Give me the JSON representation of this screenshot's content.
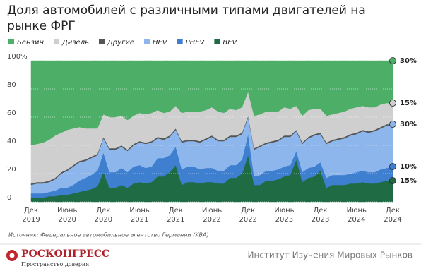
{
  "chart_data": {
    "type": "stacked-area",
    "title": "Доля автомобилей с различными типами двигателей на рынке ФРГ",
    "source": "Источник: Федеральное автомобильное агентство Германии (KBA)",
    "categories": [
      [
        "Дек",
        "2019"
      ],
      null,
      null,
      null,
      null,
      null,
      [
        "Июнь",
        "2020"
      ],
      null,
      null,
      null,
      null,
      null,
      [
        "Дек",
        "2020"
      ],
      null,
      null,
      null,
      null,
      null,
      [
        "Июнь",
        "2021"
      ],
      null,
      null,
      null,
      null,
      null,
      [
        "Дек",
        "2021"
      ],
      null,
      null,
      null,
      null,
      null,
      [
        "Июнь",
        "2022"
      ],
      null,
      null,
      null,
      null,
      null,
      [
        "Дек",
        "2022"
      ],
      null,
      null,
      null,
      null,
      null,
      [
        "Июнь",
        "2023"
      ],
      null,
      null,
      null,
      null,
      null,
      [
        "Дек",
        "2023"
      ],
      null,
      null,
      null,
      null,
      null,
      [
        "Июнь",
        "2024"
      ],
      null,
      null,
      null,
      null,
      null,
      [
        "Дек",
        "2024"
      ]
    ],
    "ylim": [
      0,
      100
    ],
    "yticks": [
      0,
      20,
      40,
      60,
      80,
      {
        "value": 100,
        "label": "100%"
      }
    ],
    "grid": true,
    "series": [
      {
        "name": "Бензин",
        "color": "#4daf67",
        "values": [
          60,
          59,
          58,
          56,
          53,
          51,
          49,
          48,
          47,
          48,
          48,
          48,
          38,
          40,
          40,
          39,
          42,
          39,
          37,
          38,
          37,
          35,
          37,
          36,
          32,
          37,
          36,
          36,
          36,
          35,
          33,
          36,
          37,
          34,
          35,
          33,
          22,
          39,
          38,
          36,
          36,
          36,
          33,
          34,
          32,
          39,
          35,
          34,
          34,
          39,
          38,
          37,
          36,
          34,
          33,
          32,
          33,
          33,
          31,
          30,
          30
        ],
        "value_labels": [
          null,
          null,
          null,
          null,
          null,
          null,
          null,
          null,
          null,
          null,
          null,
          null,
          null,
          null,
          null,
          null,
          null,
          null,
          null,
          null,
          null,
          null,
          null,
          null,
          null,
          null,
          null,
          null,
          null,
          null,
          null,
          null,
          null,
          null,
          null,
          null,
          null,
          null,
          null,
          null,
          null,
          null,
          null,
          null,
          null,
          null,
          null,
          null,
          null,
          null,
          null,
          null,
          null,
          null,
          null,
          null,
          null,
          null,
          null,
          null,
          "30%"
        ]
      },
      {
        "name": "Дизель",
        "color": "#cfcfcf",
        "values": [
          27,
          27,
          28,
          29,
          30,
          28,
          28,
          26,
          24,
          22,
          20,
          18,
          16,
          22,
          22,
          21,
          21,
          20,
          20,
          20,
          20,
          19,
          18,
          17,
          16,
          20,
          20,
          20,
          21,
          20,
          20,
          20,
          19,
          19,
          18,
          18,
          17,
          23,
          22,
          22,
          21,
          20,
          20,
          19,
          17,
          19,
          19,
          18,
          17,
          19,
          18,
          18,
          18,
          18,
          18,
          17,
          17,
          16,
          16,
          15,
          15
        ],
        "value_labels": [
          null,
          null,
          null,
          null,
          null,
          null,
          null,
          null,
          null,
          null,
          null,
          null,
          null,
          null,
          null,
          null,
          null,
          null,
          null,
          null,
          null,
          null,
          null,
          null,
          null,
          null,
          null,
          null,
          null,
          null,
          null,
          null,
          null,
          null,
          null,
          null,
          null,
          null,
          null,
          null,
          null,
          null,
          null,
          null,
          null,
          null,
          null,
          null,
          null,
          null,
          null,
          null,
          null,
          null,
          null,
          null,
          null,
          null,
          null,
          null,
          "15%"
        ]
      },
      {
        "name": "Другие",
        "color": "#555555",
        "values": [
          1,
          1,
          1,
          1,
          1,
          1,
          1,
          1,
          1,
          1,
          1,
          1,
          1,
          1,
          1,
          1,
          1,
          1,
          1,
          1,
          1,
          1,
          1,
          1,
          1,
          1,
          1,
          1,
          1,
          1,
          1,
          1,
          1,
          1,
          1,
          1,
          1,
          1,
          1,
          1,
          1,
          1,
          1,
          1,
          1,
          1,
          1,
          1,
          1,
          1,
          1,
          1,
          1,
          1,
          1,
          1,
          1,
          1,
          1,
          1,
          0
        ]
      },
      {
        "name": "HEV",
        "color": "#8db6ec",
        "values": [
          6,
          7,
          7,
          7,
          8,
          10,
          12,
          13,
          13,
          12,
          12,
          11,
          10,
          16,
          16,
          15,
          15,
          15,
          16,
          17,
          17,
          14,
          13,
          13,
          12,
          19,
          18,
          18,
          19,
          20,
          22,
          21,
          21,
          20,
          20,
          18,
          12,
          19,
          20,
          19,
          20,
          20,
          21,
          20,
          14,
          20,
          21,
          22,
          20,
          24,
          24,
          25,
          26,
          27,
          27,
          28,
          28,
          29,
          29,
          30,
          30
        ],
        "value_labels": [
          null,
          null,
          null,
          null,
          null,
          null,
          null,
          null,
          null,
          null,
          null,
          null,
          null,
          null,
          null,
          null,
          null,
          null,
          null,
          null,
          null,
          null,
          null,
          null,
          null,
          null,
          null,
          null,
          null,
          null,
          null,
          null,
          null,
          null,
          null,
          null,
          null,
          null,
          null,
          null,
          null,
          null,
          null,
          null,
          null,
          null,
          null,
          null,
          null,
          null,
          null,
          null,
          null,
          null,
          null,
          null,
          null,
          null,
          null,
          null,
          "30%"
        ]
      },
      {
        "name": "PHEV",
        "color": "#3e7fcf",
        "values": [
          3,
          3,
          3,
          3,
          4,
          5,
          5,
          6,
          8,
          9,
          10,
          11,
          14,
          11,
          11,
          12,
          11,
          12,
          12,
          11,
          11,
          13,
          13,
          12,
          13,
          11,
          11,
          11,
          10,
          10,
          10,
          9,
          9,
          9,
          9,
          10,
          15,
          6,
          7,
          7,
          7,
          7,
          7,
          7,
          6,
          7,
          7,
          7,
          6,
          7,
          7,
          7,
          7,
          7,
          8,
          8,
          8,
          8,
          9,
          9,
          10
        ],
        "value_labels": [
          null,
          null,
          null,
          null,
          null,
          null,
          null,
          null,
          null,
          null,
          null,
          null,
          null,
          null,
          null,
          null,
          null,
          null,
          null,
          null,
          null,
          null,
          null,
          null,
          null,
          null,
          null,
          null,
          null,
          null,
          null,
          null,
          null,
          null,
          null,
          null,
          null,
          null,
          null,
          null,
          null,
          null,
          null,
          null,
          null,
          null,
          null,
          null,
          null,
          null,
          null,
          null,
          null,
          null,
          null,
          null,
          null,
          null,
          null,
          null,
          "10%"
        ]
      },
      {
        "name": "BEV",
        "color": "#1e6b44",
        "values": [
          3,
          3,
          3,
          4,
          4,
          5,
          5,
          6,
          7,
          8,
          9,
          11,
          21,
          10,
          10,
          12,
          10,
          13,
          14,
          13,
          14,
          18,
          18,
          21,
          26,
          12,
          14,
          14,
          13,
          14,
          14,
          13,
          13,
          17,
          17,
          20,
          33,
          12,
          12,
          15,
          15,
          16,
          18,
          19,
          30,
          14,
          17,
          18,
          22,
          10,
          12,
          12,
          12,
          13,
          13,
          14,
          13,
          13,
          14,
          15,
          15
        ],
        "value_labels": [
          null,
          null,
          null,
          null,
          null,
          null,
          null,
          null,
          null,
          null,
          null,
          null,
          null,
          null,
          null,
          null,
          null,
          null,
          null,
          null,
          null,
          null,
          null,
          null,
          null,
          null,
          null,
          null,
          null,
          null,
          null,
          null,
          null,
          null,
          null,
          null,
          null,
          null,
          null,
          null,
          null,
          null,
          null,
          null,
          null,
          null,
          null,
          null,
          null,
          null,
          null,
          null,
          null,
          null,
          null,
          null,
          null,
          null,
          null,
          null,
          "15%"
        ]
      }
    ]
  },
  "footer": {
    "brand": "РОСКОНГРЕСС",
    "tagline": "Пространство доверия",
    "institute": "Институт Изучения Мировых Рынков"
  }
}
